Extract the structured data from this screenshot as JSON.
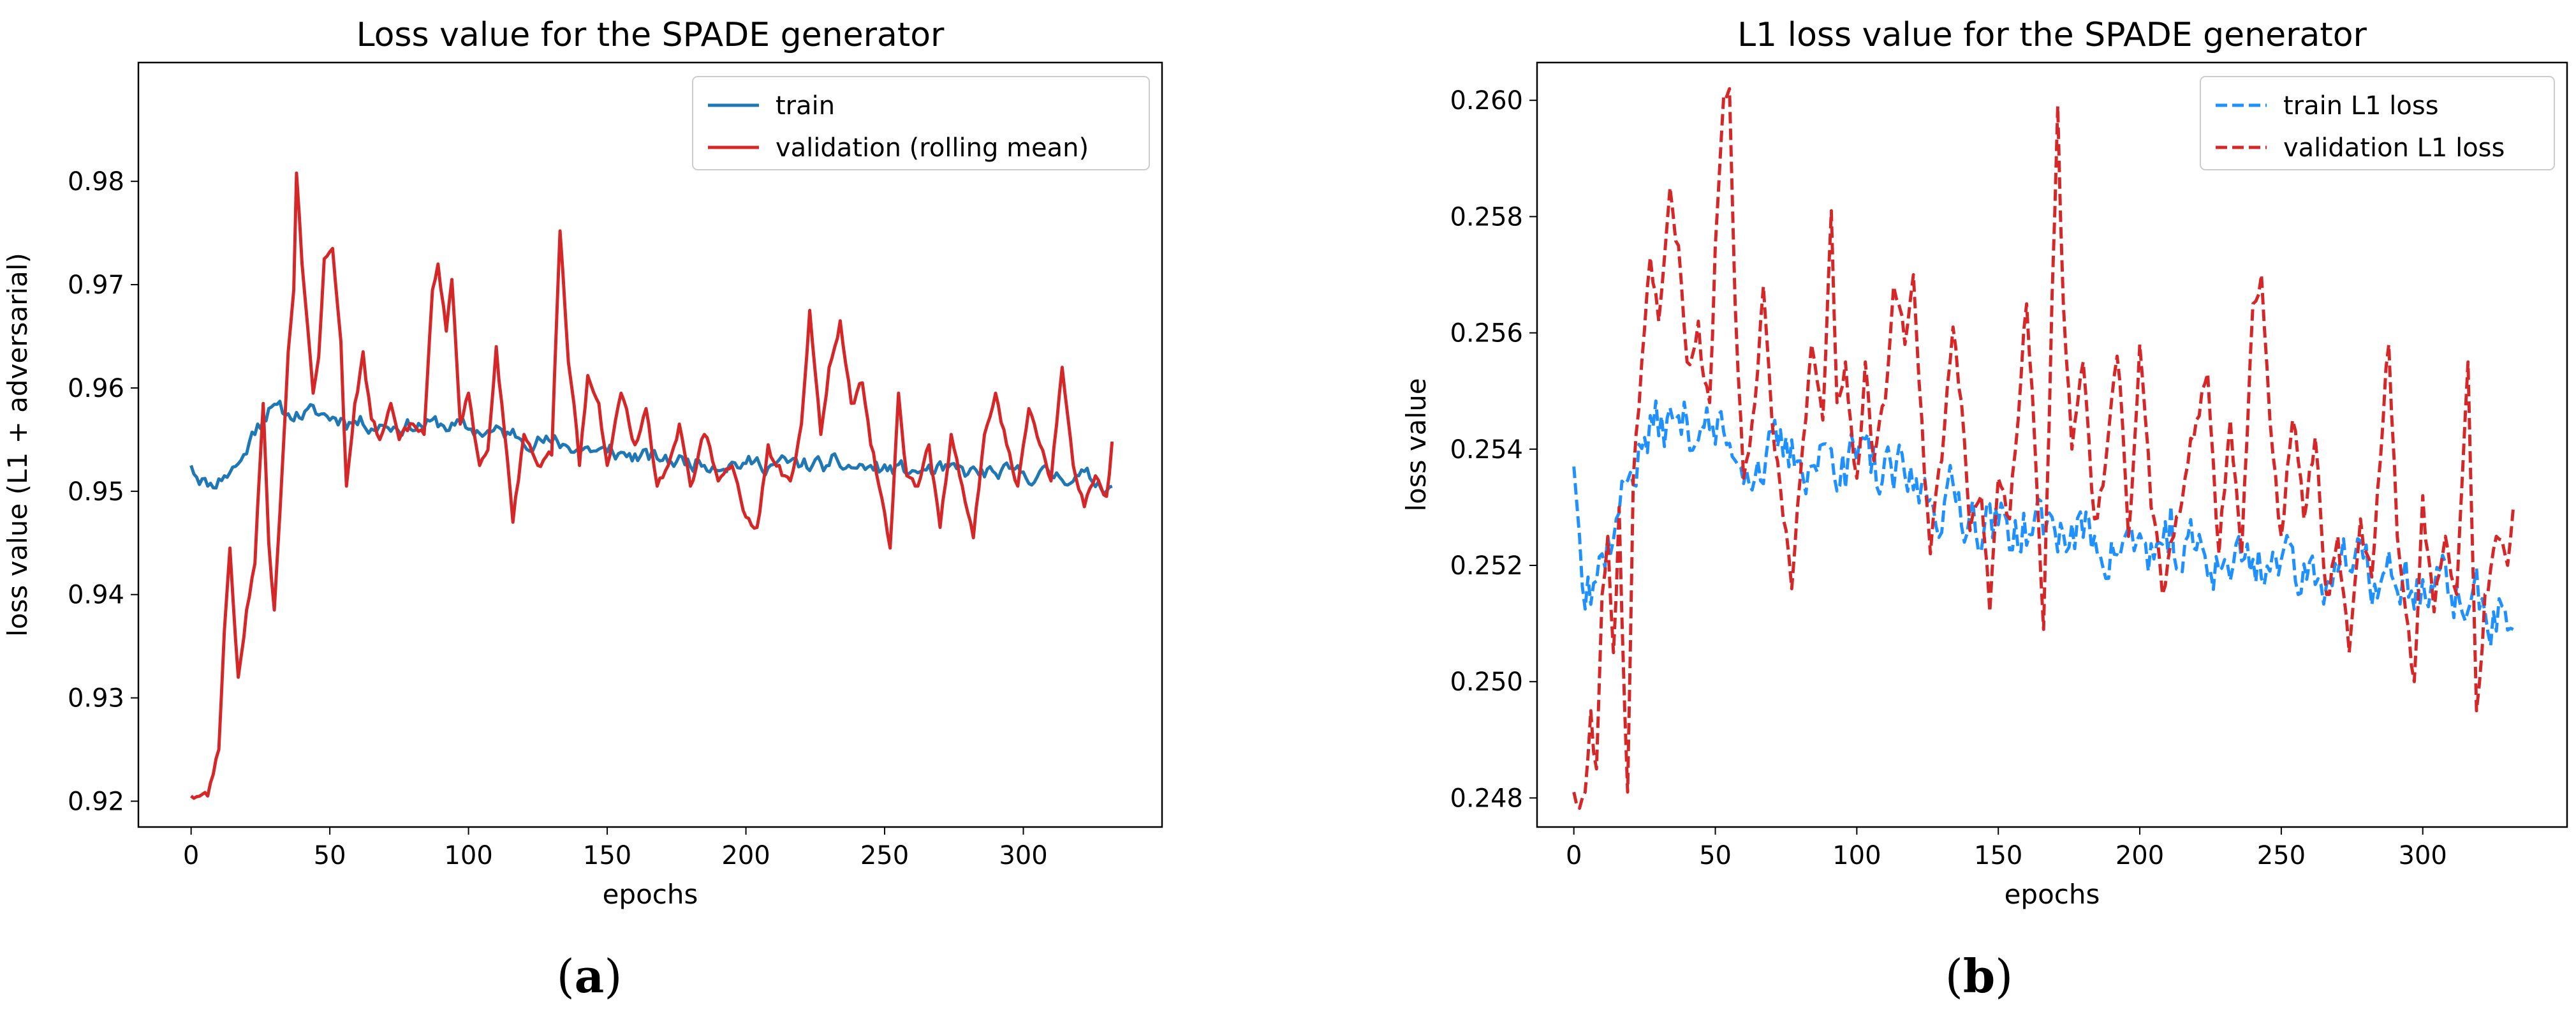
{
  "chart_data": [
    {
      "type": "line",
      "title": "Loss value for the SPADE generator",
      "xlabel": "epochs",
      "ylabel": "loss value (L1 + adversarial)",
      "xlim": [
        -19,
        350
      ],
      "ylim": [
        0.9175,
        0.9915
      ],
      "xticks": [
        0,
        50,
        100,
        150,
        200,
        250,
        300
      ],
      "yticks": [
        0.92,
        0.93,
        0.94,
        0.95,
        0.96,
        0.97,
        0.98
      ],
      "yticks_decimals": 2,
      "legend_position": "top-right",
      "caption_letter": "a",
      "series": [
        {
          "name": "train",
          "color": "#1f77b4",
          "dash": "solid",
          "x_end": 332,
          "anchors": [
            [
              0,
              0.9525
            ],
            [
              4,
              0.9512
            ],
            [
              6,
              0.9505
            ],
            [
              12,
              0.9515
            ],
            [
              18,
              0.953
            ],
            [
              24,
              0.9565
            ],
            [
              28,
              0.958
            ],
            [
              35,
              0.9575
            ],
            [
              45,
              0.9575
            ],
            [
              55,
              0.957
            ],
            [
              70,
              0.9563
            ],
            [
              90,
              0.9565
            ],
            [
              100,
              0.956
            ],
            [
              115,
              0.9555
            ],
            [
              130,
              0.9547
            ],
            [
              150,
              0.9538
            ],
            [
              170,
              0.953
            ],
            [
              200,
              0.9527
            ],
            [
              230,
              0.9525
            ],
            [
              260,
              0.952
            ],
            [
              290,
              0.9517
            ],
            [
              320,
              0.9515
            ],
            [
              332,
              0.9505
            ]
          ],
          "noise_amp": 0.0007,
          "seed": 11
        },
        {
          "name": "validation (rolling mean)",
          "color": "#d62728",
          "dash": "solid",
          "x_end": 332,
          "anchors": [
            [
              0,
              0.9205
            ],
            [
              6,
              0.9205
            ],
            [
              10,
              0.925
            ],
            [
              12,
              0.9365
            ],
            [
              14,
              0.9445
            ],
            [
              17,
              0.932
            ],
            [
              20,
              0.9385
            ],
            [
              23,
              0.943
            ],
            [
              26,
              0.9585
            ],
            [
              28,
              0.945
            ],
            [
              30,
              0.9385
            ],
            [
              32,
              0.9478
            ],
            [
              35,
              0.9635
            ],
            [
              37,
              0.9695
            ],
            [
              38,
              0.9808
            ],
            [
              40,
              0.972
            ],
            [
              42,
              0.966
            ],
            [
              44,
              0.9595
            ],
            [
              46,
              0.963
            ],
            [
              48,
              0.9725
            ],
            [
              51,
              0.9735
            ],
            [
              54,
              0.9645
            ],
            [
              56,
              0.9505
            ],
            [
              59,
              0.9585
            ],
            [
              62,
              0.9635
            ],
            [
              65,
              0.957
            ],
            [
              68,
              0.955
            ],
            [
              72,
              0.9585
            ],
            [
              75,
              0.955
            ],
            [
              80,
              0.9565
            ],
            [
              84,
              0.9555
            ],
            [
              87,
              0.9695
            ],
            [
              89,
              0.972
            ],
            [
              92,
              0.9655
            ],
            [
              94,
              0.9705
            ],
            [
              97,
              0.9565
            ],
            [
              100,
              0.9595
            ],
            [
              104,
              0.9525
            ],
            [
              107,
              0.954
            ],
            [
              110,
              0.964
            ],
            [
              112,
              0.9585
            ],
            [
              116,
              0.947
            ],
            [
              120,
              0.9555
            ],
            [
              125,
              0.9525
            ],
            [
              130,
              0.9535
            ],
            [
              133,
              0.9752
            ],
            [
              136,
              0.9625
            ],
            [
              138,
              0.9585
            ],
            [
              140,
              0.9525
            ],
            [
              143,
              0.9612
            ],
            [
              147,
              0.9585
            ],
            [
              150,
              0.9525
            ],
            [
              155,
              0.9595
            ],
            [
              160,
              0.9545
            ],
            [
              164,
              0.958
            ],
            [
              168,
              0.9505
            ],
            [
              172,
              0.9525
            ],
            [
              176,
              0.9565
            ],
            [
              180,
              0.9505
            ],
            [
              185,
              0.9555
            ],
            [
              190,
              0.951
            ],
            [
              195,
              0.9525
            ],
            [
              200,
              0.9475
            ],
            [
              204,
              0.9465
            ],
            [
              208,
              0.9545
            ],
            [
              212,
              0.9525
            ],
            [
              216,
              0.951
            ],
            [
              220,
              0.9565
            ],
            [
              223,
              0.9675
            ],
            [
              227,
              0.9555
            ],
            [
              230,
              0.962
            ],
            [
              234,
              0.9665
            ],
            [
              238,
              0.9585
            ],
            [
              242,
              0.9605
            ],
            [
              245,
              0.9545
            ],
            [
              248,
              0.9505
            ],
            [
              252,
              0.9445
            ],
            [
              255,
              0.9595
            ],
            [
              258,
              0.9515
            ],
            [
              262,
              0.9505
            ],
            [
              266,
              0.9545
            ],
            [
              270,
              0.9465
            ],
            [
              274,
              0.9555
            ],
            [
              278,
              0.9505
            ],
            [
              282,
              0.9455
            ],
            [
              286,
              0.9555
            ],
            [
              290,
              0.9595
            ],
            [
              294,
              0.9545
            ],
            [
              298,
              0.9505
            ],
            [
              302,
              0.958
            ],
            [
              306,
              0.9545
            ],
            [
              310,
              0.951
            ],
            [
              314,
              0.962
            ],
            [
              318,
              0.9525
            ],
            [
              322,
              0.9485
            ],
            [
              326,
              0.9515
            ],
            [
              330,
              0.9495
            ],
            [
              332,
              0.9548
            ]
          ],
          "noise_amp": 0.0004,
          "seed": 23
        }
      ]
    },
    {
      "type": "line",
      "title": "L1 loss value for the SPADE generator",
      "xlabel": "epochs",
      "ylabel": "loss value",
      "xlim": [
        -13,
        351
      ],
      "ylim": [
        0.2475,
        0.26065
      ],
      "xticks": [
        0,
        50,
        100,
        150,
        200,
        250,
        300
      ],
      "yticks": [
        0.248,
        0.25,
        0.252,
        0.254,
        0.256,
        0.258,
        0.26
      ],
      "yticks_decimals": 3,
      "legend_position": "top-right",
      "caption_letter": "b",
      "series": [
        {
          "name": "train L1 loss",
          "color": "#1e90ff",
          "dash": "dashed",
          "x_end": 332,
          "anchors": [
            [
              0,
              0.2537
            ],
            [
              2,
              0.2525
            ],
            [
              5,
              0.2518
            ],
            [
              10,
              0.2522
            ],
            [
              15,
              0.2528
            ],
            [
              20,
              0.2536
            ],
            [
              25,
              0.2542
            ],
            [
              35,
              0.2545
            ],
            [
              45,
              0.2544
            ],
            [
              55,
              0.2541
            ],
            [
              65,
              0.2538
            ],
            [
              80,
              0.2538
            ],
            [
              95,
              0.2539
            ],
            [
              105,
              0.2536
            ],
            [
              120,
              0.2533
            ],
            [
              135,
              0.2531
            ],
            [
              150,
              0.2527
            ],
            [
              170,
              0.2526
            ],
            [
              190,
              0.2524
            ],
            [
              210,
              0.2522
            ],
            [
              230,
              0.2521
            ],
            [
              250,
              0.2521
            ],
            [
              270,
              0.2519
            ],
            [
              290,
              0.2517
            ],
            [
              310,
              0.2515
            ],
            [
              325,
              0.2512
            ],
            [
              332,
              0.2509
            ]
          ],
          "noise_amp": 0.00048,
          "seed": 37
        },
        {
          "name": "validation L1 loss",
          "color": "#d62728",
          "dash": "dashed",
          "x_end": 332,
          "anchors": [
            [
              0,
              0.2481
            ],
            [
              4,
              0.2481
            ],
            [
              6,
              0.2495
            ],
            [
              8,
              0.2485
            ],
            [
              10,
              0.2515
            ],
            [
              12,
              0.2525
            ],
            [
              14,
              0.2505
            ],
            [
              16,
              0.253
            ],
            [
              18,
              0.2495
            ],
            [
              19,
              0.2481
            ],
            [
              21,
              0.2535
            ],
            [
              24,
              0.2555
            ],
            [
              27,
              0.2573
            ],
            [
              30,
              0.2562
            ],
            [
              34,
              0.2585
            ],
            [
              37,
              0.2575
            ],
            [
              40,
              0.2555
            ],
            [
              44,
              0.2562
            ],
            [
              48,
              0.2548
            ],
            [
              50,
              0.2575
            ],
            [
              53,
              0.2601
            ],
            [
              55,
              0.2602
            ],
            [
              57,
              0.2565
            ],
            [
              60,
              0.2535
            ],
            [
              64,
              0.2548
            ],
            [
              67,
              0.2568
            ],
            [
              70,
              0.2545
            ],
            [
              74,
              0.2528
            ],
            [
              77,
              0.2516
            ],
            [
              80,
              0.2535
            ],
            [
              84,
              0.2558
            ],
            [
              88,
              0.2545
            ],
            [
              91,
              0.2581
            ],
            [
              93,
              0.2548
            ],
            [
              96,
              0.2555
            ],
            [
              100,
              0.2535
            ],
            [
              103,
              0.2555
            ],
            [
              106,
              0.2538
            ],
            [
              110,
              0.2548
            ],
            [
              113,
              0.2568
            ],
            [
              117,
              0.2558
            ],
            [
              120,
              0.257
            ],
            [
              123,
              0.2545
            ],
            [
              126,
              0.2522
            ],
            [
              130,
              0.2538
            ],
            [
              134,
              0.2561
            ],
            [
              137,
              0.2548
            ],
            [
              140,
              0.2526
            ],
            [
              144,
              0.2532
            ],
            [
              147,
              0.2512
            ],
            [
              150,
              0.2535
            ],
            [
              154,
              0.2528
            ],
            [
              157,
              0.2545
            ],
            [
              160,
              0.2565
            ],
            [
              163,
              0.254
            ],
            [
              166,
              0.2509
            ],
            [
              168,
              0.2545
            ],
            [
              171,
              0.2599
            ],
            [
              173,
              0.2565
            ],
            [
              176,
              0.254
            ],
            [
              180,
              0.2555
            ],
            [
              184,
              0.2528
            ],
            [
              188,
              0.2538
            ],
            [
              192,
              0.2556
            ],
            [
              196,
              0.2525
            ],
            [
              200,
              0.2558
            ],
            [
              204,
              0.253
            ],
            [
              208,
              0.2515
            ],
            [
              212,
              0.2525
            ],
            [
              216,
              0.2535
            ],
            [
              220,
              0.2545
            ],
            [
              224,
              0.2553
            ],
            [
              228,
              0.2522
            ],
            [
              232,
              0.2545
            ],
            [
              236,
              0.2522
            ],
            [
              240,
              0.2565
            ],
            [
              243,
              0.257
            ],
            [
              246,
              0.2545
            ],
            [
              250,
              0.2525
            ],
            [
              254,
              0.2545
            ],
            [
              258,
              0.2528
            ],
            [
              262,
              0.2542
            ],
            [
              266,
              0.2515
            ],
            [
              270,
              0.2525
            ],
            [
              274,
              0.2505
            ],
            [
              278,
              0.2528
            ],
            [
              282,
              0.2518
            ],
            [
              286,
              0.2545
            ],
            [
              288,
              0.2558
            ],
            [
              291,
              0.2525
            ],
            [
              294,
              0.2512
            ],
            [
              297,
              0.25
            ],
            [
              300,
              0.2532
            ],
            [
              304,
              0.2512
            ],
            [
              308,
              0.2525
            ],
            [
              312,
              0.2515
            ],
            [
              316,
              0.2555
            ],
            [
              319,
              0.2495
            ],
            [
              322,
              0.2515
            ],
            [
              326,
              0.2525
            ],
            [
              330,
              0.252
            ],
            [
              332,
              0.253
            ]
          ],
          "noise_amp": 0.0002,
          "seed": 53
        }
      ]
    }
  ]
}
